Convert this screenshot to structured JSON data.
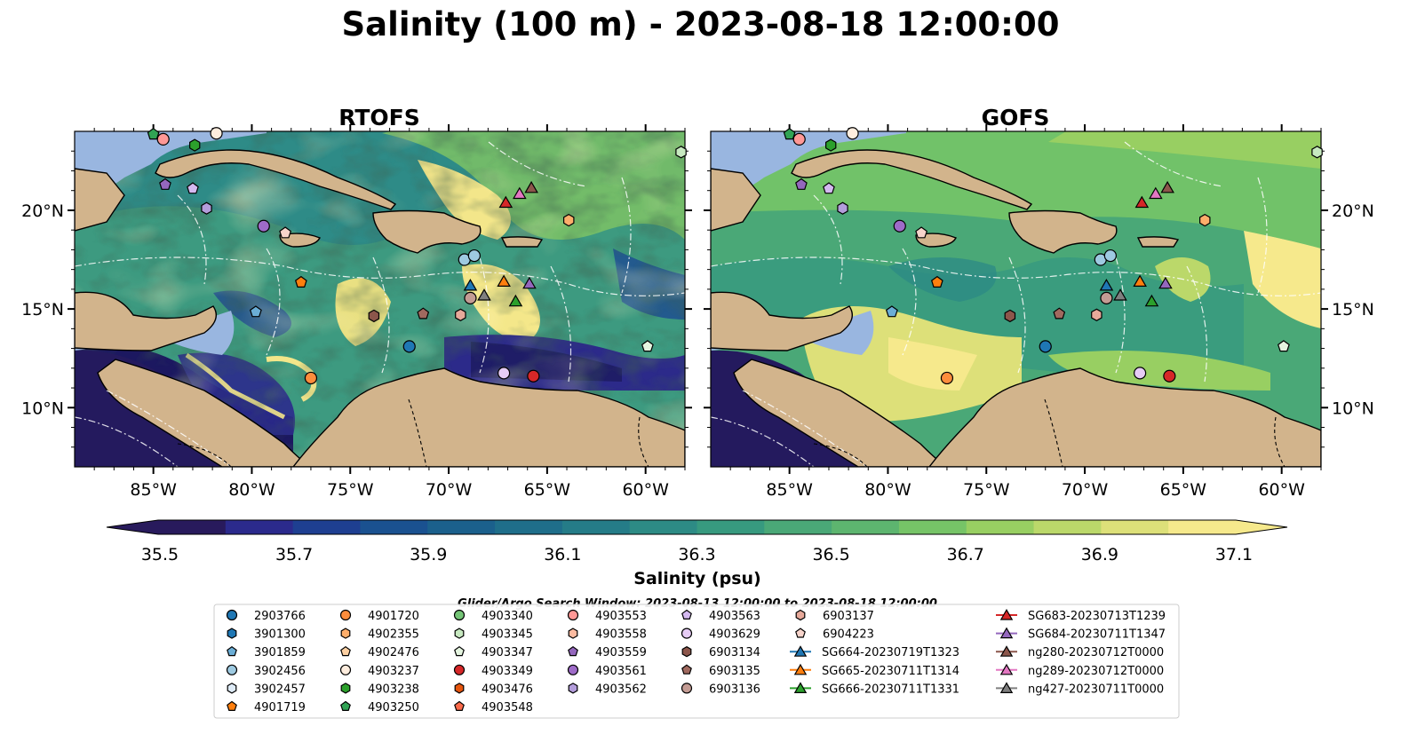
{
  "title": "Salinity (100 m) - 2023-08-18 12:00:00",
  "panels": [
    {
      "key": "rtofs",
      "title": "RTOFS",
      "lat_labels_side": "left"
    },
    {
      "key": "gofs",
      "title": "GOFS",
      "lat_labels_side": "right"
    }
  ],
  "map": {
    "lon_range": [
      -89,
      -58
    ],
    "lat_range": [
      7,
      24
    ],
    "lon_ticks": [
      "85°W",
      "80°W",
      "75°W",
      "70°W",
      "65°W",
      "60°W"
    ],
    "lat_ticks": [
      "20°N",
      "15°N",
      "10°N"
    ],
    "land_color": "#d2b48c",
    "shelf_color": "#99b6e0"
  },
  "colorbar": {
    "title": "Salinity (psu)",
    "min": 35.5,
    "max": 37.1,
    "step": 0.1,
    "tick_labels": [
      "35.5",
      "35.7",
      "35.9",
      "36.1",
      "36.3",
      "36.5",
      "36.7",
      "36.9",
      "37.1"
    ],
    "colors": [
      "#281a5c",
      "#2b2a8c",
      "#1e3f91",
      "#1a5190",
      "#1b608c",
      "#1f6e8a",
      "#257c88",
      "#2d8b85",
      "#379a7f",
      "#4aa877",
      "#5db56f",
      "#76c467",
      "#98cf62",
      "#bbd86a",
      "#dde079",
      "#f6e98c"
    ],
    "extend": "both"
  },
  "search_window": "Glider/Argo Search Window: 2023-08-13 12:00:00 to 2023-08-18 12:00:00",
  "legend": {
    "columns": [
      [
        {
          "label": "2903766",
          "marker": "circle",
          "color": "#1f77b4"
        },
        {
          "label": "3901300",
          "marker": "hexagon",
          "color": "#1f77b4"
        },
        {
          "label": "3901859",
          "marker": "pentagon",
          "color": "#6baed6"
        },
        {
          "label": "3902456",
          "marker": "circle",
          "color": "#9ecae1"
        },
        {
          "label": "3902457",
          "marker": "hexagon",
          "color": "#deebf7"
        },
        {
          "label": "4901719",
          "marker": "pentagon",
          "color": "#ff7f0e"
        }
      ],
      [
        {
          "label": "4901720",
          "marker": "circle",
          "color": "#fd8d3c"
        },
        {
          "label": "4902355",
          "marker": "hexagon",
          "color": "#fdae6b"
        },
        {
          "label": "4902476",
          "marker": "pentagon",
          "color": "#fdd0a2"
        },
        {
          "label": "4903237",
          "marker": "circle",
          "color": "#feedde"
        },
        {
          "label": "4903238",
          "marker": "hexagon",
          "color": "#2ca02c"
        },
        {
          "label": "4903250",
          "marker": "pentagon",
          "color": "#31a354"
        }
      ],
      [
        {
          "label": "4903340",
          "marker": "circle",
          "color": "#74c476"
        },
        {
          "label": "4903345",
          "marker": "hexagon",
          "color": "#c7e9c0"
        },
        {
          "label": "4903347",
          "marker": "pentagon",
          "color": "#e5f5e0"
        },
        {
          "label": "4903349",
          "marker": "circle",
          "color": "#d62728"
        },
        {
          "label": "4903476",
          "marker": "hexagon",
          "color": "#e6550d"
        },
        {
          "label": "4903548",
          "marker": "pentagon",
          "color": "#fb6a4a"
        }
      ],
      [
        {
          "label": "4903553",
          "marker": "circle",
          "color": "#ff9896"
        },
        {
          "label": "4903558",
          "marker": "hexagon",
          "color": "#fcbba1"
        },
        {
          "label": "4903559",
          "marker": "pentagon",
          "color": "#9467bd"
        },
        {
          "label": "4903561",
          "marker": "circle",
          "color": "#9e6bc8"
        },
        {
          "label": "4903562",
          "marker": "hexagon",
          "color": "#b39ddb"
        }
      ],
      [
        {
          "label": "4903563",
          "marker": "pentagon",
          "color": "#d4b9f0"
        },
        {
          "label": "4903629",
          "marker": "circle",
          "color": "#e6ccf5"
        },
        {
          "label": "6903134",
          "marker": "hexagon",
          "color": "#8c564b"
        },
        {
          "label": "6903135",
          "marker": "pentagon",
          "color": "#a0695f"
        },
        {
          "label": "6903136",
          "marker": "circle",
          "color": "#c49c94"
        }
      ],
      [
        {
          "label": "6903137",
          "marker": "hexagon",
          "color": "#e7a99a"
        },
        {
          "label": "6904223",
          "marker": "pentagon",
          "color": "#f7d4cb"
        },
        {
          "label": "SG664-20230719T1323",
          "marker": "triangle",
          "color": "#1f77b4",
          "line": true
        },
        {
          "label": "SG665-20230711T1314",
          "marker": "triangle",
          "color": "#ff7f0e",
          "line": true
        },
        {
          "label": "SG666-20230711T1331",
          "marker": "triangle",
          "color": "#2ca02c",
          "line": true
        }
      ],
      [
        {
          "label": "SG683-20230713T1239",
          "marker": "triangle",
          "color": "#d62728",
          "line": true
        },
        {
          "label": "SG684-20230711T1347",
          "marker": "triangle",
          "color": "#9467bd",
          "line": true
        },
        {
          "label": "ng280-20230712T0000",
          "marker": "triangle",
          "color": "#8c564b",
          "line": true
        },
        {
          "label": "ng289-20230712T0000",
          "marker": "triangle",
          "color": "#e377c2",
          "line": true
        },
        {
          "label": "ng427-20230711T0000",
          "marker": "triangle",
          "color": "#7f7f7f",
          "line": true
        }
      ]
    ]
  },
  "observations": [
    {
      "id": "4903250",
      "lon": -85.0,
      "lat": 23.85,
      "marker": "pentagon",
      "color": "#31a354"
    },
    {
      "id": "4903553",
      "lon": -84.5,
      "lat": 23.6,
      "marker": "circle",
      "color": "#ff9896"
    },
    {
      "id": "4903237",
      "lon": -81.8,
      "lat": 23.9,
      "marker": "circle",
      "color": "#feedde"
    },
    {
      "id": "4903238",
      "lon": -82.9,
      "lat": 23.3,
      "marker": "hexagon",
      "color": "#2ca02c"
    },
    {
      "id": "4903559",
      "lon": -84.4,
      "lat": 21.3,
      "marker": "pentagon",
      "color": "#9467bd"
    },
    {
      "id": "4903563",
      "lon": -83.0,
      "lat": 21.1,
      "marker": "pentagon",
      "color": "#d4b9f0"
    },
    {
      "id": "4903562",
      "lon": -82.3,
      "lat": 20.1,
      "marker": "hexagon",
      "color": "#b39ddb"
    },
    {
      "id": "4903561",
      "lon": -79.4,
      "lat": 19.2,
      "marker": "circle",
      "color": "#9e6bc8"
    },
    {
      "id": "6904223",
      "lon": -78.3,
      "lat": 18.85,
      "marker": "pentagon",
      "color": "#f7d4cb"
    },
    {
      "id": "4901719",
      "lon": -77.5,
      "lat": 16.35,
      "marker": "pentagon",
      "color": "#ff7f0e"
    },
    {
      "id": "3901859",
      "lon": -79.8,
      "lat": 14.85,
      "marker": "pentagon",
      "color": "#6baed6"
    },
    {
      "id": "6903134",
      "lon": -73.8,
      "lat": 14.65,
      "marker": "hexagon",
      "color": "#8c564b"
    },
    {
      "id": "6903135",
      "lon": -71.3,
      "lat": 14.75,
      "marker": "pentagon",
      "color": "#a0695f"
    },
    {
      "id": "6903137",
      "lon": -69.4,
      "lat": 14.7,
      "marker": "hexagon",
      "color": "#e7a99a"
    },
    {
      "id": "6903136",
      "lon": -68.9,
      "lat": 15.55,
      "marker": "circle",
      "color": "#c49c94"
    },
    {
      "id": "2903766",
      "lon": -72.0,
      "lat": 13.1,
      "marker": "circle",
      "color": "#1f77b4"
    },
    {
      "id": "4901720",
      "lon": -77.0,
      "lat": 11.5,
      "marker": "circle",
      "color": "#fd8d3c"
    },
    {
      "id": "4903629",
      "lon": -67.2,
      "lat": 11.75,
      "marker": "circle",
      "color": "#e6ccf5"
    },
    {
      "id": "4903349",
      "lon": -65.7,
      "lat": 11.6,
      "marker": "circle",
      "color": "#d62728"
    },
    {
      "id": "3902456",
      "lon": -69.2,
      "lat": 17.5,
      "marker": "circle",
      "color": "#9ecae1"
    },
    {
      "id": "3902456b",
      "lon": -68.7,
      "lat": 17.7,
      "marker": "circle",
      "color": "#9ecae1"
    },
    {
      "id": "4902355",
      "lon": -63.9,
      "lat": 19.5,
      "marker": "hexagon",
      "color": "#fdae6b"
    },
    {
      "id": "4903345",
      "lon": -58.2,
      "lat": 22.95,
      "marker": "hexagon",
      "color": "#c7e9c0"
    },
    {
      "id": "4903347",
      "lon": -59.9,
      "lat": 13.1,
      "marker": "pentagon",
      "color": "#e5f5e0"
    },
    {
      "id": "SG683",
      "lon": -67.1,
      "lat": 20.4,
      "marker": "triangle",
      "color": "#d62728"
    },
    {
      "id": "ng289",
      "lon": -66.4,
      "lat": 20.85,
      "marker": "triangle",
      "color": "#e377c2"
    },
    {
      "id": "ng280",
      "lon": -65.8,
      "lat": 21.15,
      "marker": "triangle",
      "color": "#8c564b"
    },
    {
      "id": "SG664",
      "lon": -68.9,
      "lat": 16.2,
      "marker": "triangle",
      "color": "#1f77b4"
    },
    {
      "id": "ng427",
      "lon": -68.2,
      "lat": 15.7,
      "marker": "triangle",
      "color": "#7f7f7f"
    },
    {
      "id": "SG665",
      "lon": -67.2,
      "lat": 16.4,
      "marker": "triangle",
      "color": "#ff7f0e"
    },
    {
      "id": "SG684",
      "lon": -65.9,
      "lat": 16.3,
      "marker": "triangle",
      "color": "#9467bd"
    },
    {
      "id": "SG666",
      "lon": -66.6,
      "lat": 15.4,
      "marker": "triangle",
      "color": "#2ca02c"
    }
  ]
}
